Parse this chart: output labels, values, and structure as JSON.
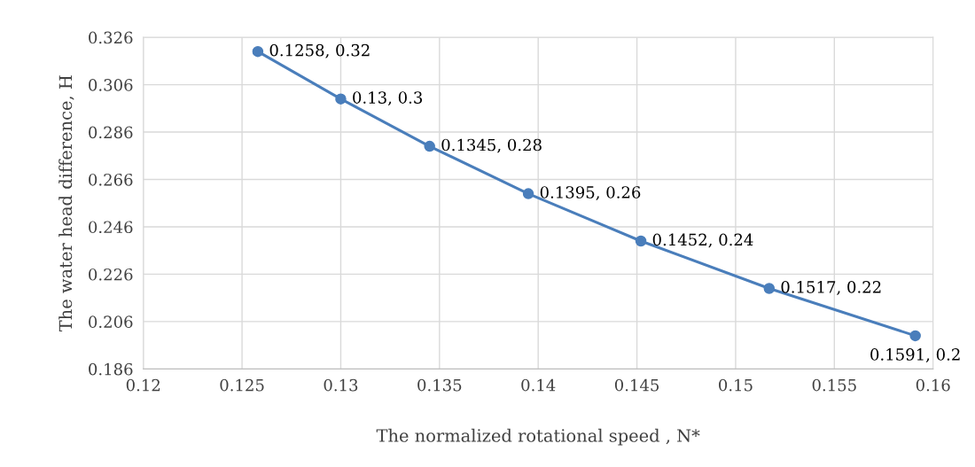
{
  "chart_data": {
    "type": "line",
    "xlabel": "The normalized rotational speed , N*",
    "ylabel": "The water head difference, H",
    "x": [
      0.1258,
      0.13,
      0.1345,
      0.1395,
      0.1452,
      0.1517,
      0.1591
    ],
    "series": [
      {
        "color": "#4a7ebb",
        "values": [
          0.32,
          0.3,
          0.28,
          0.26,
          0.24,
          0.22,
          0.2
        ],
        "value_labels": [
          "0.1258, 0.32",
          "0.13, 0.3",
          "0.1345, 0.28",
          "0.1395, 0.26",
          "0.1452, 0.24",
          "0.1517, 0.22",
          "0.1591, 0.2"
        ]
      }
    ],
    "xlim": [
      0.12,
      0.16
    ],
    "xticks": [
      0.12,
      0.125,
      0.13,
      0.135,
      0.14,
      0.145,
      0.15,
      0.155,
      0.16
    ],
    "ylim": [
      0.186,
      0.326
    ],
    "yticks": [
      0.186,
      0.206,
      0.226,
      0.246,
      0.266,
      0.286,
      0.306,
      0.326
    ],
    "grid": true,
    "marker": "circle",
    "line_style": "solid",
    "legend": false
  }
}
